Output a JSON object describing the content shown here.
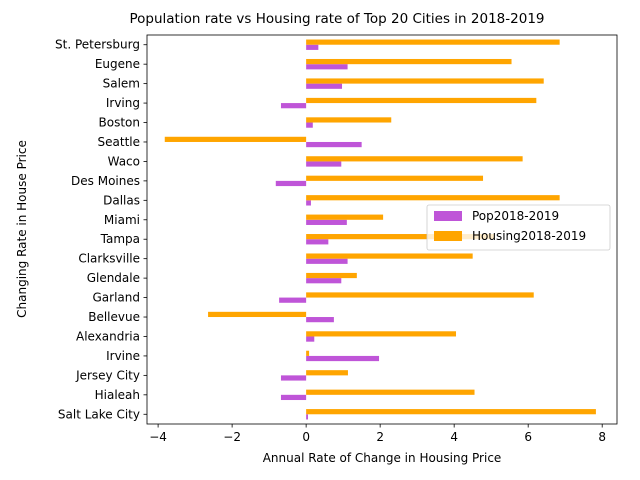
{
  "chart_data": {
    "type": "bar",
    "orientation": "horizontal",
    "title": "Population rate vs Housing rate of Top 20 Cities in 2018-2019",
    "xlabel": "Annual Rate of Change in Housing Price",
    "ylabel": "Changing Rate in House Price",
    "xlim": [
      -4.3,
      8.4
    ],
    "xticks": [
      -4,
      -2,
      0,
      2,
      4,
      6,
      8
    ],
    "grid": false,
    "legend_position": "center-right",
    "categories": [
      "Salt Lake City",
      "Hialeah",
      "Jersey City",
      "Irvine",
      "Alexandria",
      "Bellevue",
      "Garland",
      "Glendale",
      "Clarksville",
      "Tampa",
      "Miami",
      "Dallas",
      "Des Moines",
      "Waco",
      "Seattle",
      "Boston",
      "Irving",
      "Salem",
      "Eugene",
      "St. Petersburg"
    ],
    "series": [
      {
        "name": "Pop2018-2019",
        "color": "#bf55d8",
        "values": [
          0.05,
          -0.68,
          -0.68,
          1.97,
          0.22,
          0.75,
          -0.73,
          0.95,
          1.12,
          0.6,
          1.1,
          0.13,
          -0.82,
          0.95,
          1.5,
          0.18,
          -0.68,
          0.97,
          1.12,
          0.33
        ]
      },
      {
        "name": "Housing2018-2019",
        "color": "#ffa500",
        "values": [
          7.83,
          4.55,
          1.13,
          0.08,
          4.05,
          -2.65,
          6.15,
          1.37,
          4.5,
          5.1,
          2.08,
          6.85,
          4.78,
          5.85,
          -3.82,
          2.3,
          6.22,
          6.42,
          5.55,
          6.85
        ]
      }
    ]
  }
}
